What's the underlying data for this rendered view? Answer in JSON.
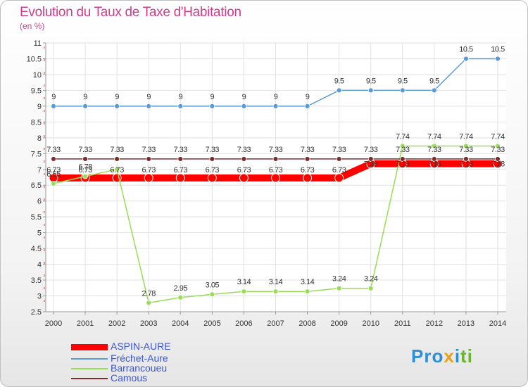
{
  "chart_data": {
    "type": "line",
    "title": "Evolution du Taux de Taxe d'Habitation",
    "subtitle": "(en %)",
    "xlabel": "",
    "ylabel": "",
    "categories": [
      "2000",
      "2001",
      "2002",
      "2003",
      "2004",
      "2005",
      "2006",
      "2007",
      "2008",
      "2009",
      "2010",
      "2011",
      "2012",
      "2013",
      "2014"
    ],
    "ylim": [
      2.5,
      11
    ],
    "yticks": [
      2.5,
      3,
      3.5,
      4,
      4.5,
      5,
      5.5,
      6,
      6.5,
      7,
      7.5,
      8,
      8.5,
      9,
      9.5,
      10,
      10.5,
      11
    ],
    "ytick_labels": [
      "2.5",
      "3",
      "3.5",
      "4",
      "4.5",
      "5",
      "5.5",
      "6",
      "6.5",
      "7",
      "7.5",
      "8",
      "8.5",
      "9",
      "9.5",
      "10",
      "10.5",
      "11"
    ],
    "grid": true,
    "legend_position": "bottom-left",
    "series": [
      {
        "name": "ASPIN-AURE",
        "color": "#ff0000",
        "values": [
          6.73,
          6.73,
          6.73,
          6.73,
          6.73,
          6.73,
          6.73,
          6.73,
          6.73,
          6.73,
          7.18,
          7.18,
          7.18,
          7.18,
          7.18
        ],
        "labels": [
          "6.73",
          "6.73",
          "6.73",
          "6.73",
          "6.73",
          "6.73",
          "6.73",
          "6.73",
          "6.73",
          "6.73",
          "7.18",
          "7.18",
          "7.18",
          "7.18",
          "7.18"
        ]
      },
      {
        "name": "Fréchet-Aure",
        "color": "#5a9bd5",
        "values": [
          9,
          9,
          9,
          9,
          9,
          9,
          9,
          9,
          9,
          9.5,
          9.5,
          9.5,
          9.5,
          10.5,
          10.5
        ],
        "labels": [
          "9",
          "9",
          "9",
          "9",
          "9",
          "9",
          "9",
          "9",
          "9",
          "9.5",
          "9.5",
          "9.5",
          "9.5",
          "10.5",
          "10.5"
        ]
      },
      {
        "name": "Barrancoueu",
        "color": "#99dd55",
        "values": [
          6.55,
          6.78,
          7,
          2.78,
          2.95,
          3.05,
          3.14,
          3.14,
          3.14,
          3.24,
          3.24,
          7.74,
          7.74,
          7.74,
          7.74
        ],
        "labels": [
          "6.55",
          "6.78",
          "",
          "2.78",
          "2.95",
          "3.05",
          "3.14",
          "3.14",
          "3.14",
          "3.24",
          "3.24",
          "7.74",
          "7.74",
          "7.74",
          "7.74"
        ]
      },
      {
        "name": "Camous",
        "color": "#7a2e2e",
        "values": [
          7.33,
          7.33,
          7.33,
          7.33,
          7.33,
          7.33,
          7.33,
          7.33,
          7.33,
          7.33,
          7.33,
          7.33,
          7.33,
          7.33,
          7.33
        ],
        "labels": [
          "7.33",
          "7.33",
          "7.33",
          "7.33",
          "7.33",
          "7.33",
          "7.33",
          "7.33",
          "7.33",
          "7.33",
          "7.33",
          "7.33",
          "7.33",
          "7.33",
          "7.33"
        ]
      }
    ]
  },
  "brand": {
    "p1": "Pro",
    "p2": "x",
    "p3": "i",
    "p4": "ti"
  }
}
